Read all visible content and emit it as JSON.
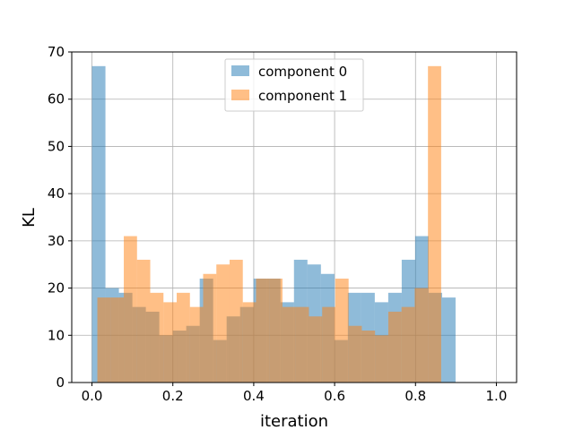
{
  "chart_data": {
    "type": "bar",
    "title": "",
    "xlabel": "iteration",
    "ylabel": "KL",
    "xlim": [
      -0.05,
      1.05
    ],
    "ylim": [
      0,
      70
    ],
    "xticks": [
      0.0,
      0.2,
      0.4,
      0.6,
      0.8,
      1.0
    ],
    "xtick_labels": [
      "0.0",
      "0.2",
      "0.4",
      "0.6",
      "0.8",
      "1.0"
    ],
    "yticks": [
      0,
      10,
      20,
      30,
      40,
      50,
      60,
      70
    ],
    "ytick_labels": [
      "0",
      "10",
      "20",
      "30",
      "40",
      "50",
      "60",
      "70"
    ],
    "grid": true,
    "legend_position": "top-center",
    "series": [
      {
        "name": "component 0",
        "color": "#1f77b4",
        "opacity": 0.5,
        "bin_start": 0.0,
        "bin_width": 0.0333,
        "values": [
          67,
          20,
          19,
          16,
          15,
          10,
          11,
          12,
          22,
          9,
          14,
          16,
          22,
          22,
          17,
          26,
          25,
          23,
          9,
          19,
          19,
          17,
          19,
          26,
          31,
          19,
          18,
          0,
          0,
          0
        ]
      },
      {
        "name": "component 1",
        "color": "#ff7f0e",
        "opacity": 0.5,
        "bin_start": 0.0133,
        "bin_width": 0.0327,
        "values": [
          18,
          18,
          31,
          26,
          19,
          17,
          19,
          16,
          23,
          25,
          26,
          17,
          22,
          22,
          16,
          16,
          14,
          16,
          22,
          12,
          11,
          10,
          15,
          16,
          20,
          67
        ]
      }
    ]
  }
}
